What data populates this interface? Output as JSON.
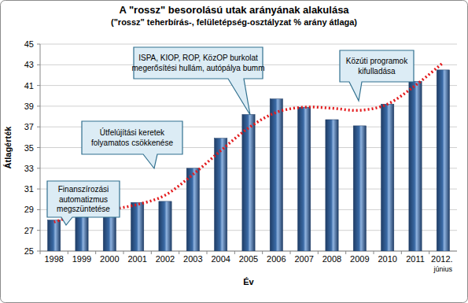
{
  "chart_data": {
    "type": "bar",
    "title": "A \"rossz\" besorolású utak arányának alakulása",
    "subtitle": "(\"rossz\" teherbírás-, felületépség-osztályzat % arány átlaga)",
    "x_label": "Év",
    "y_label": "Átlagérték",
    "categories": [
      "1998",
      "1999",
      "2000",
      "2001",
      "2002",
      "2003",
      "2004",
      "2005",
      "2006",
      "2007",
      "2008",
      "2009",
      "2010",
      "2011",
      "2012. június"
    ],
    "series": [
      {
        "type": "bar",
        "color": "#3a6aa5",
        "values": [
          28.0,
          30.3,
          29.3,
          29.7,
          29.8,
          33.0,
          35.9,
          38.2,
          39.7,
          38.9,
          37.7,
          37.1,
          39.2,
          41.4,
          42.5
        ]
      },
      {
        "type": "line",
        "color": "#e31a1c",
        "line_style": "dotted",
        "values": [
          27.8,
          28.6,
          29.0,
          29.5,
          30.4,
          32.4,
          34.7,
          36.9,
          38.4,
          38.9,
          38.8,
          38.6,
          39.2,
          41.0,
          43.2
        ]
      }
    ],
    "ylim": [
      25,
      45
    ],
    "yticks": [
      25,
      27,
      29,
      31,
      33,
      35,
      37,
      39,
      41,
      43,
      45
    ],
    "grid": true,
    "annotations": [
      {
        "text": [
          "Finanszírozási",
          "automatizmus",
          "megszüntetése"
        ]
      },
      {
        "text": [
          "Útfelújítási keretek",
          "folyamatos csökkenése"
        ]
      },
      {
        "text": [
          "ISPA, KIOP, ROP, KözOP burkolat",
          "megerősítési hullám, autópálya bumm"
        ]
      },
      {
        "text": [
          "Közúti programok",
          "kifulladása"
        ]
      }
    ]
  }
}
